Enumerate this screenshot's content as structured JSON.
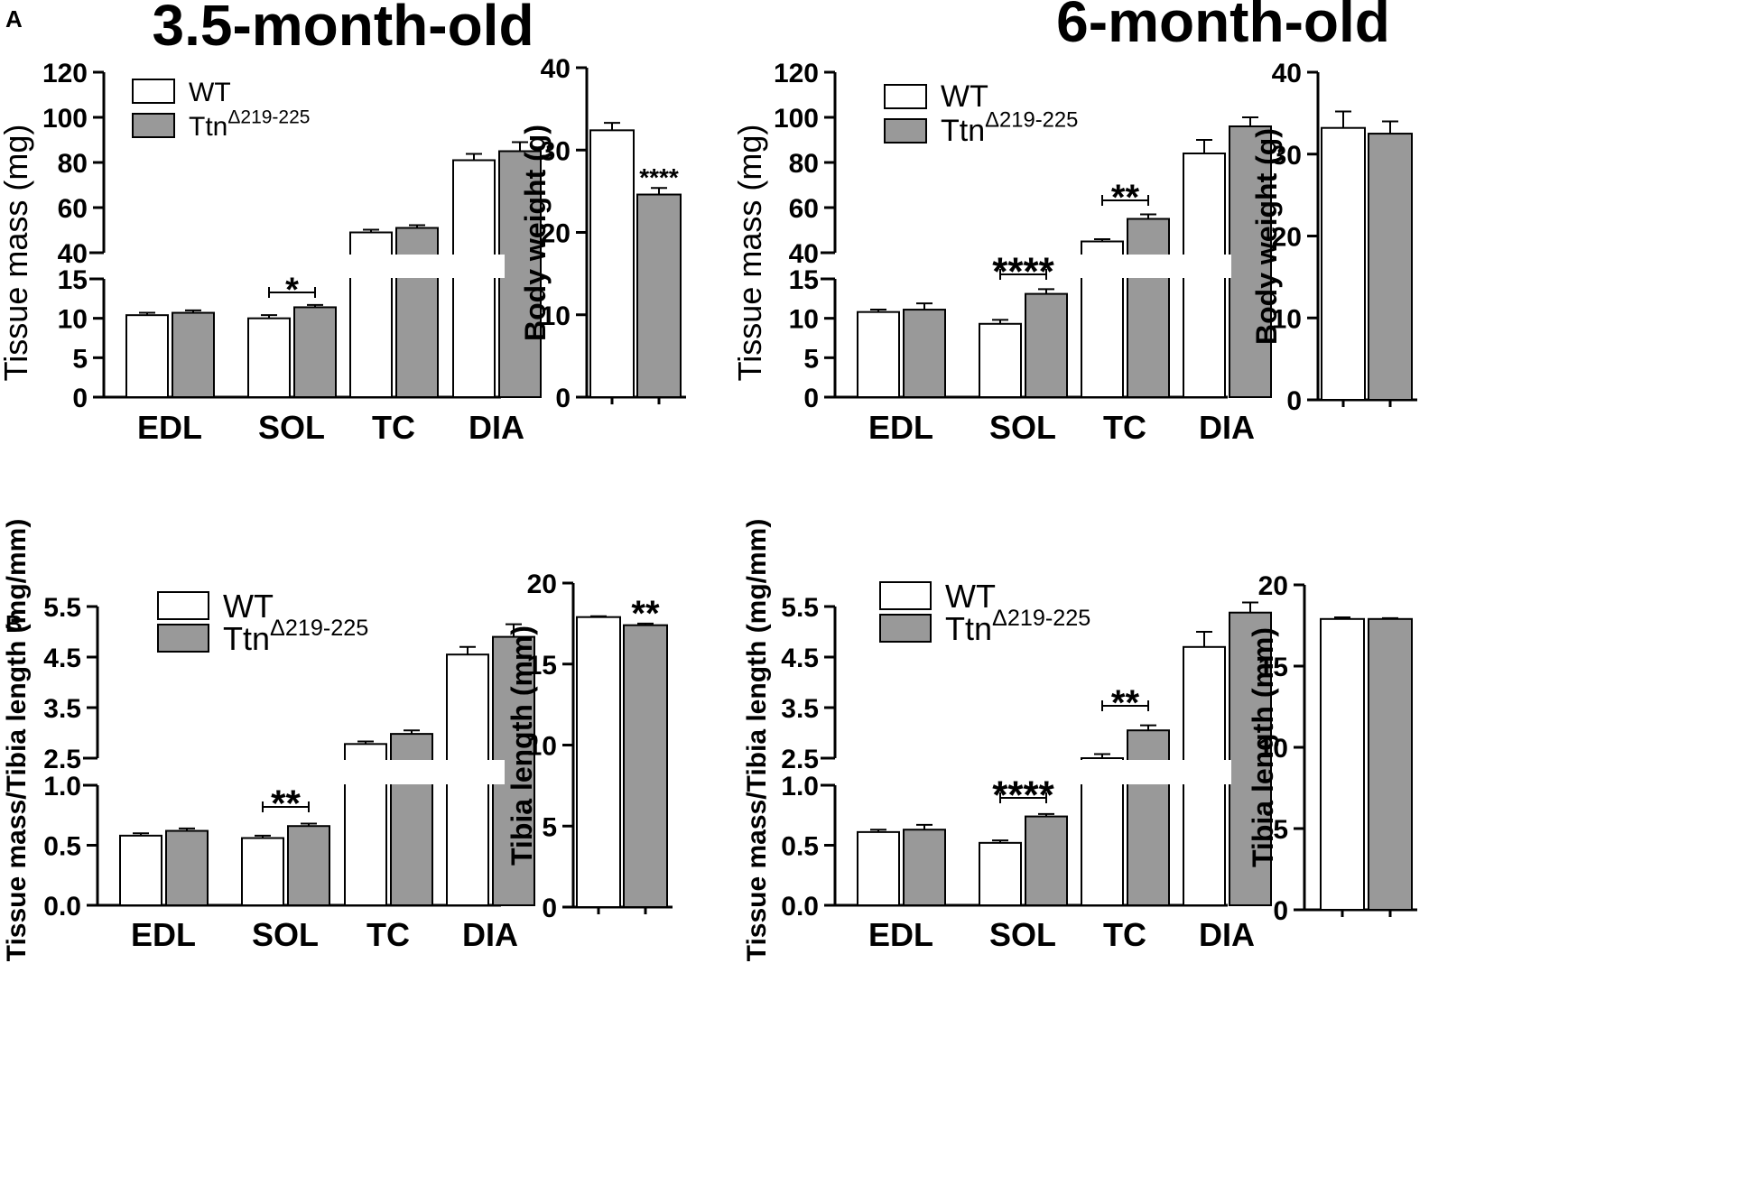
{
  "panel_labels": [
    "A",
    "B"
  ],
  "column_titles": [
    "3.5-month-old",
    "6-month-old"
  ],
  "legend": {
    "wt": "WT",
    "ttn_base": "Ttn",
    "ttn_sup": "Δ219-225"
  },
  "colors": {
    "wt_fill": "#ffffff",
    "ttn_fill": "#999999",
    "stroke": "#000000"
  },
  "chart_data": [
    {
      "id": "A-3.5-tissue",
      "type": "bar",
      "ylabel": "Tissue mass (mg)",
      "categories": [
        "EDL",
        "SOL",
        "TC",
        "DIA"
      ],
      "broken_axis": {
        "lower": {
          "range": [
            0,
            15
          ],
          "ticks": [
            "0",
            "5",
            "10",
            "15"
          ]
        },
        "upper": {
          "range": [
            40,
            120
          ],
          "ticks": [
            "40",
            "60",
            "80",
            "100",
            "120"
          ]
        }
      },
      "series": [
        {
          "name": "WT",
          "values": [
            10.4,
            10.0,
            49,
            81
          ],
          "errors": [
            0.3,
            0.4,
            1.2,
            2.8
          ]
        },
        {
          "name": "TtnΔ219-225",
          "values": [
            10.7,
            11.4,
            51,
            85
          ],
          "errors": [
            0.3,
            0.3,
            1.2,
            4.0
          ]
        }
      ],
      "significance": [
        {
          "category": "SOL",
          "label": "*"
        }
      ]
    },
    {
      "id": "A-3.5-body",
      "type": "bar",
      "ylabel": "Body weight (g)",
      "ylim": [
        0,
        40
      ],
      "yticks": [
        "0",
        "10",
        "20",
        "30",
        "40"
      ],
      "series": [
        {
          "name": "WT",
          "values": [
            32.4
          ],
          "errors": [
            0.9
          ]
        },
        {
          "name": "TtnΔ219-225",
          "values": [
            24.6
          ],
          "errors": [
            0.8
          ]
        }
      ],
      "significance": [
        {
          "label": "****"
        }
      ]
    },
    {
      "id": "A-6-tissue",
      "type": "bar",
      "ylabel": "Tissue mass (mg)",
      "categories": [
        "EDL",
        "SOL",
        "TC",
        "DIA"
      ],
      "broken_axis": {
        "lower": {
          "range": [
            0,
            15
          ],
          "ticks": [
            "0",
            "5",
            "10",
            "15"
          ]
        },
        "upper": {
          "range": [
            40,
            120
          ],
          "ticks": [
            "40",
            "60",
            "80",
            "100",
            "120"
          ]
        }
      },
      "series": [
        {
          "name": "WT",
          "values": [
            10.8,
            9.3,
            45,
            84
          ],
          "errors": [
            0.3,
            0.5,
            1.0,
            6.0
          ]
        },
        {
          "name": "TtnΔ219-225",
          "values": [
            11.1,
            13.1,
            55,
            96
          ],
          "errors": [
            0.8,
            0.6,
            2.0,
            4.0
          ]
        }
      ],
      "significance": [
        {
          "category": "SOL",
          "label": "****"
        },
        {
          "category": "TC",
          "label": "**"
        }
      ]
    },
    {
      "id": "A-6-body",
      "type": "bar",
      "ylabel": "Body weight (g)",
      "ylim": [
        0,
        40
      ],
      "yticks": [
        "0",
        "10",
        "20",
        "30",
        "40"
      ],
      "series": [
        {
          "name": "WT",
          "values": [
            33.2
          ],
          "errors": [
            2.0
          ]
        },
        {
          "name": "TtnΔ219-225",
          "values": [
            32.5
          ],
          "errors": [
            1.5
          ]
        }
      ],
      "significance": []
    },
    {
      "id": "B-3.5-ratio",
      "type": "bar",
      "ylabel": "Tissue mass/Tibia length (mg/mm)",
      "categories": [
        "EDL",
        "SOL",
        "TC",
        "DIA"
      ],
      "broken_axis": {
        "lower": {
          "range": [
            0,
            1.0
          ],
          "ticks": [
            "0.0",
            "0.5",
            "1.0"
          ]
        },
        "upper": {
          "range": [
            2.5,
            5.5
          ],
          "ticks": [
            "2.5",
            "3.5",
            "4.5",
            "5.5"
          ]
        }
      },
      "series": [
        {
          "name": "WT",
          "values": [
            0.58,
            0.56,
            2.78,
            4.55
          ],
          "errors": [
            0.02,
            0.02,
            0.05,
            0.15
          ]
        },
        {
          "name": "TtnΔ219-225",
          "values": [
            0.62,
            0.66,
            2.98,
            4.9
          ],
          "errors": [
            0.02,
            0.02,
            0.07,
            0.25
          ]
        }
      ],
      "significance": [
        {
          "category": "SOL",
          "label": "**"
        }
      ]
    },
    {
      "id": "B-3.5-tibia",
      "type": "bar",
      "ylabel": "Tibia length (mm)",
      "ylim": [
        0,
        20
      ],
      "yticks": [
        "0",
        "5",
        "10",
        "15",
        "20"
      ],
      "series": [
        {
          "name": "WT",
          "values": [
            17.9
          ],
          "errors": [
            0.05
          ]
        },
        {
          "name": "TtnΔ219-225",
          "values": [
            17.4
          ],
          "errors": [
            0.1
          ]
        }
      ],
      "significance": [
        {
          "label": "**"
        }
      ]
    },
    {
      "id": "B-6-ratio",
      "type": "bar",
      "ylabel": "Tissue mass/Tibia length (mg/mm)",
      "categories": [
        "EDL",
        "SOL",
        "TC",
        "DIA"
      ],
      "broken_axis": {
        "lower": {
          "range": [
            0,
            1.0
          ],
          "ticks": [
            "0.0",
            "0.5",
            "1.0"
          ]
        },
        "upper": {
          "range": [
            2.5,
            5.5
          ],
          "ticks": [
            "2.5",
            "3.5",
            "4.5",
            "5.5"
          ]
        }
      },
      "series": [
        {
          "name": "WT",
          "values": [
            0.61,
            0.52,
            2.5,
            4.7
          ],
          "errors": [
            0.02,
            0.02,
            0.08,
            0.3
          ]
        },
        {
          "name": "TtnΔ219-225",
          "values": [
            0.63,
            0.74,
            3.05,
            5.38
          ],
          "errors": [
            0.04,
            0.02,
            0.1,
            0.2
          ]
        }
      ],
      "significance": [
        {
          "category": "SOL",
          "label": "****"
        },
        {
          "category": "TC",
          "label": "**"
        }
      ]
    },
    {
      "id": "B-6-tibia",
      "type": "bar",
      "ylabel": "Tibia length (mm)",
      "ylim": [
        0,
        20
      ],
      "yticks": [
        "0",
        "5",
        "10",
        "15",
        "20"
      ],
      "series": [
        {
          "name": "WT",
          "values": [
            17.9
          ],
          "errors": [
            0.1
          ]
        },
        {
          "name": "TtnΔ219-225",
          "values": [
            17.9
          ],
          "errors": [
            0.05
          ]
        }
      ],
      "significance": []
    }
  ]
}
